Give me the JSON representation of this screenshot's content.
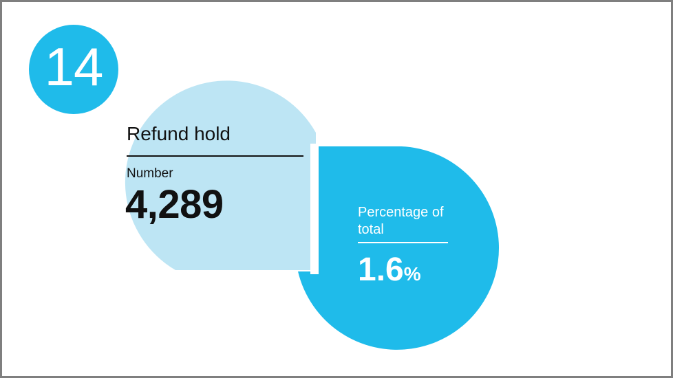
{
  "badge": {
    "number": "14"
  },
  "refund_hold": {
    "title": "Refund hold",
    "number_label": "Number",
    "number_value": "4,289",
    "percentage_label": "Percentage of total",
    "percentage_value": "1.6",
    "percentage_unit": "%"
  },
  "colors": {
    "light_blue": "#BDE5F4",
    "bright_blue": "#1FBBEA",
    "frame": "#7F7F7F",
    "text_dark": "#111111",
    "text_light": "#FFFFFF"
  }
}
